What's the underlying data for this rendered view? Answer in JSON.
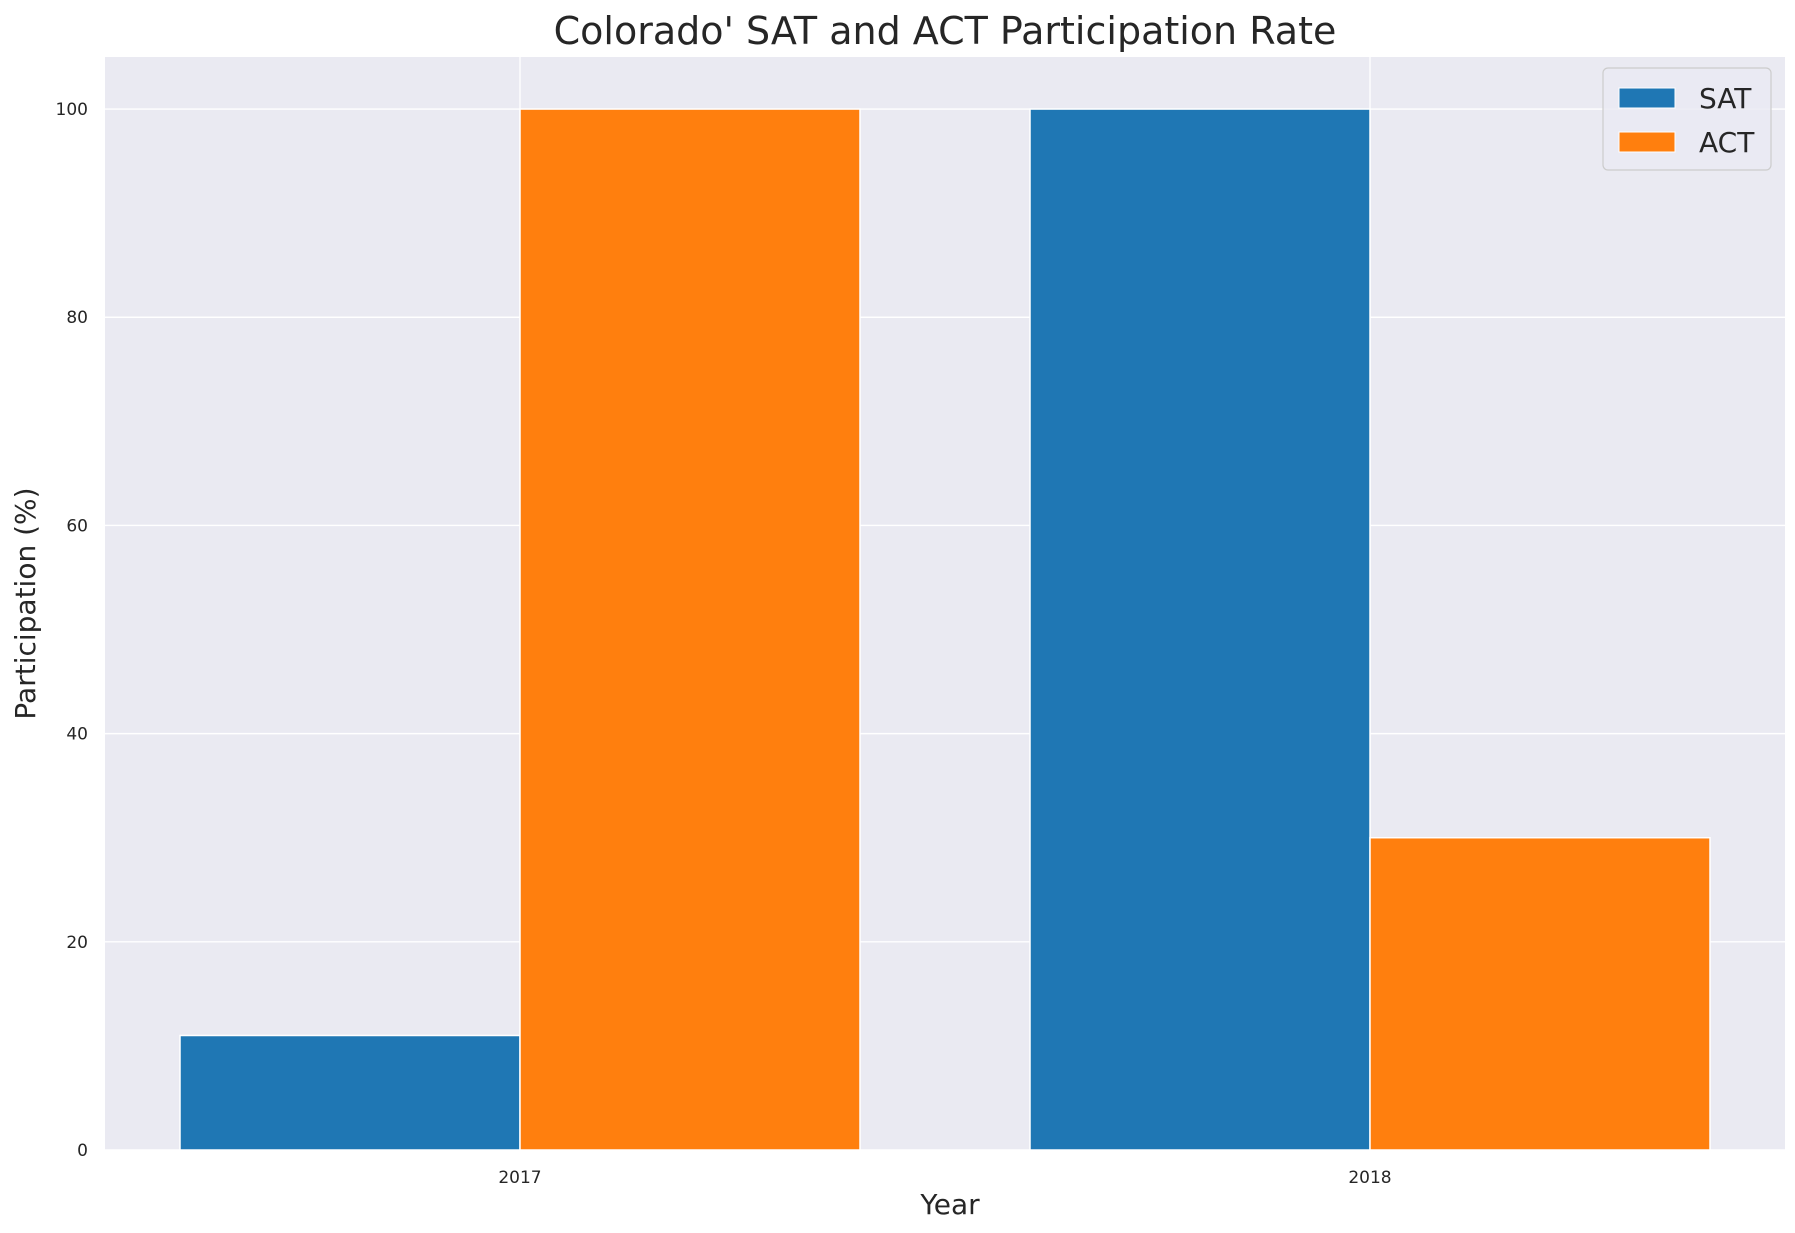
{
  "chart_data": {
    "type": "bar",
    "title": "Colorado' SAT and ACT Participation Rate",
    "xlabel": "Year",
    "ylabel": "Participation (%)",
    "categories": [
      "2017",
      "2018"
    ],
    "series": [
      {
        "name": "SAT",
        "color": "#1f77b4",
        "values": [
          11,
          100
        ]
      },
      {
        "name": "ACT",
        "color": "#ff7f0e",
        "values": [
          100,
          30
        ]
      }
    ],
    "ylim": [
      0,
      105
    ],
    "yticks": [
      "0",
      "20",
      "40",
      "60",
      "80",
      "100"
    ],
    "grid": true,
    "legend_position": "top-right",
    "colors": {
      "plot_background": "#eaeaf2",
      "grid": "#ffffff",
      "text": "#262626"
    }
  }
}
